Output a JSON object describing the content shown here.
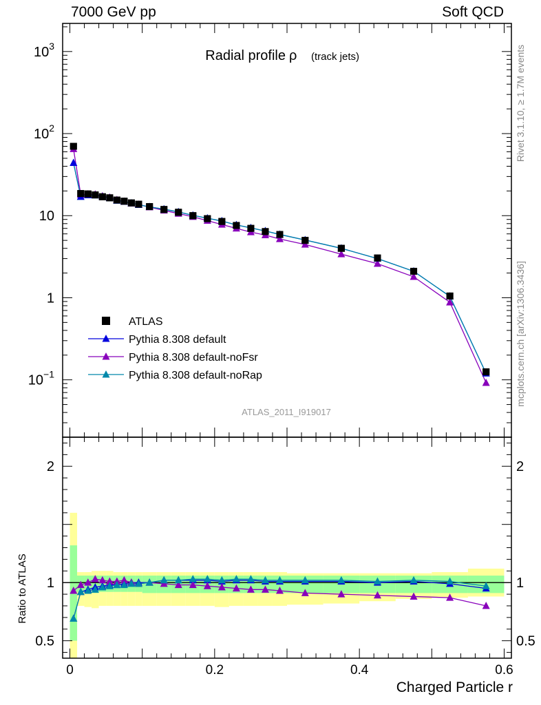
{
  "header": {
    "left": "7000 GeV pp",
    "right": "Soft QCD"
  },
  "side_labels": {
    "rivet": "Rivet 3.1.10, ≥ 1.7M events",
    "mcplots": "mcplots.cern.ch [arXiv:1306.3436]"
  },
  "chart_data": [
    {
      "type": "scatter",
      "panel": "main",
      "title": "Radial profile",
      "title_symbol": "ρ",
      "title_suffix": "(track jets)",
      "analysis_label": "ATLAS_2011_I919017",
      "y_scale": "log",
      "xlim": [
        -0.01,
        0.61
      ],
      "ylim": [
        0.02,
        2200
      ],
      "y_ticks": [
        {
          "v": 0.1,
          "base": "10",
          "exp": "−1"
        },
        {
          "v": 1,
          "text": "1"
        },
        {
          "v": 10,
          "text": "10"
        },
        {
          "v": 100,
          "base": "10",
          "exp": "2"
        },
        {
          "v": 1000,
          "base": "10",
          "exp": "3"
        }
      ],
      "x": [
        0.005,
        0.015,
        0.025,
        0.035,
        0.045,
        0.055,
        0.065,
        0.075,
        0.085,
        0.095,
        0.11,
        0.13,
        0.15,
        0.17,
        0.19,
        0.21,
        0.23,
        0.25,
        0.27,
        0.29,
        0.325,
        0.375,
        0.425,
        0.475,
        0.525,
        0.575
      ],
      "series": [
        {
          "name": "ATLAS",
          "marker": "square",
          "color": "#000000",
          "values": [
            70,
            18.6,
            18.4,
            17.9,
            17.0,
            16.5,
            15.5,
            15.0,
            14.3,
            13.8,
            12.9,
            11.9,
            11.0,
            10.0,
            9.2,
            8.5,
            7.6,
            7.0,
            6.4,
            5.9,
            5.0,
            4.0,
            3.05,
            2.1,
            1.05,
            0.125
          ]
        },
        {
          "name": "Pythia 8.308 default",
          "marker": "triangle",
          "color": "#0000dd",
          "values": [
            44,
            17.0,
            17.8,
            17.7,
            17.0,
            16.4,
            15.3,
            14.8,
            14.2,
            13.6,
            12.8,
            12.0,
            11.1,
            10.1,
            9.3,
            8.6,
            7.7,
            7.1,
            6.5,
            5.9,
            5.05,
            4.0,
            3.0,
            2.1,
            1.04,
            0.12
          ]
        },
        {
          "name": "Pythia 8.308 default-noFsr",
          "marker": "triangle",
          "color": "#8800bb",
          "values": [
            65,
            18.0,
            18.3,
            18.2,
            17.3,
            16.7,
            15.6,
            14.9,
            14.1,
            13.7,
            12.7,
            11.6,
            10.6,
            9.7,
            8.7,
            7.8,
            7.0,
            6.3,
            5.8,
            5.2,
            4.45,
            3.4,
            2.6,
            1.8,
            0.88,
            0.092
          ]
        },
        {
          "name": "Pythia 8.308 default-noRap",
          "marker": "triangle",
          "color": "#0088aa",
          "values": [
            44,
            17.0,
            17.8,
            17.7,
            17.0,
            16.4,
            15.3,
            14.8,
            14.2,
            13.6,
            12.8,
            12.0,
            11.1,
            10.1,
            9.3,
            8.6,
            7.7,
            7.1,
            6.5,
            5.9,
            5.05,
            4.0,
            3.0,
            2.1,
            1.04,
            0.12
          ]
        }
      ]
    },
    {
      "type": "scatter",
      "panel": "ratio",
      "ylabel": "Ratio to ATLAS",
      "xlabel": "Charged Particle r",
      "xlim": [
        -0.01,
        0.61
      ],
      "ylim": [
        0.35,
        2.25
      ],
      "x_ticks": [
        0,
        0.2,
        0.4,
        0.6
      ],
      "x_tick_labels": [
        "0",
        "0.2",
        "0.4",
        "0.6"
      ],
      "y_ticks": [
        0.5,
        1,
        2
      ],
      "y_tick_labels": [
        "0.5",
        "1",
        "2"
      ],
      "bins": [
        0,
        0.01,
        0.02,
        0.03,
        0.04,
        0.05,
        0.06,
        0.07,
        0.08,
        0.09,
        0.1,
        0.12,
        0.14,
        0.16,
        0.18,
        0.2,
        0.22,
        0.24,
        0.26,
        0.28,
        0.3,
        0.35,
        0.4,
        0.45,
        0.5,
        0.55,
        0.6
      ],
      "band_stat": {
        "color": "#99ff99",
        "low": [
          0.5,
          0.92,
          0.91,
          0.91,
          0.92,
          0.92,
          0.92,
          0.92,
          0.92,
          0.92,
          0.91,
          0.91,
          0.91,
          0.91,
          0.91,
          0.91,
          0.91,
          0.91,
          0.91,
          0.91,
          0.91,
          0.91,
          0.91,
          0.91,
          0.91,
          0.91
        ],
        "high": [
          1.32,
          1.06,
          1.06,
          1.06,
          1.06,
          1.06,
          1.06,
          1.06,
          1.06,
          1.06,
          1.06,
          1.06,
          1.06,
          1.06,
          1.06,
          1.06,
          1.06,
          1.06,
          1.06,
          1.06,
          1.06,
          1.06,
          1.06,
          1.06,
          1.06,
          1.06
        ]
      },
      "band_total": {
        "color": "#ffff99",
        "low": [
          0.35,
          0.8,
          0.79,
          0.78,
          0.8,
          0.8,
          0.8,
          0.8,
          0.8,
          0.8,
          0.8,
          0.8,
          0.8,
          0.8,
          0.8,
          0.79,
          0.8,
          0.8,
          0.8,
          0.8,
          0.81,
          0.82,
          0.84,
          0.86,
          0.87,
          0.88
        ],
        "high": [
          1.6,
          1.09,
          1.09,
          1.1,
          1.1,
          1.1,
          1.09,
          1.09,
          1.09,
          1.09,
          1.09,
          1.09,
          1.09,
          1.09,
          1.09,
          1.09,
          1.09,
          1.09,
          1.09,
          1.09,
          1.08,
          1.08,
          1.08,
          1.08,
          1.09,
          1.12
        ]
      },
      "x": [
        0.005,
        0.015,
        0.025,
        0.035,
        0.045,
        0.055,
        0.065,
        0.075,
        0.085,
        0.095,
        0.11,
        0.13,
        0.15,
        0.17,
        0.19,
        0.21,
        0.23,
        0.25,
        0.27,
        0.29,
        0.325,
        0.375,
        0.425,
        0.475,
        0.525,
        0.575
      ],
      "series": [
        {
          "name": "Pythia 8.308 default",
          "marker": "triangle",
          "color": "#0000dd",
          "values": [
            0.69,
            0.92,
            0.94,
            0.96,
            0.97,
            0.98,
            0.98,
            0.99,
            1.0,
            1.0,
            1.0,
            1.02,
            1.02,
            1.02,
            1.02,
            1.01,
            1.02,
            1.02,
            1.01,
            1.01,
            1.01,
            1.01,
            1.0,
            1.01,
            0.99,
            0.95
          ]
        },
        {
          "name": "Pythia 8.308 default-noFsr",
          "marker": "triangle",
          "color": "#8800bb",
          "values": [
            0.93,
            0.98,
            1.0,
            1.03,
            1.02,
            1.01,
            1.01,
            1.02,
            1.0,
            0.99,
            1.0,
            0.99,
            0.98,
            0.98,
            0.97,
            0.96,
            0.95,
            0.94,
            0.94,
            0.93,
            0.91,
            0.9,
            0.89,
            0.88,
            0.87,
            0.8
          ]
        },
        {
          "name": "Pythia 8.308 default-noRap",
          "marker": "triangle",
          "color": "#0088aa",
          "values": [
            0.69,
            0.92,
            0.93,
            0.94,
            0.96,
            0.97,
            0.98,
            0.98,
            0.99,
            0.99,
            1.0,
            1.02,
            1.02,
            1.03,
            1.03,
            1.02,
            1.03,
            1.03,
            1.02,
            1.02,
            1.02,
            1.02,
            1.01,
            1.02,
            1.01,
            0.97
          ]
        }
      ]
    }
  ]
}
